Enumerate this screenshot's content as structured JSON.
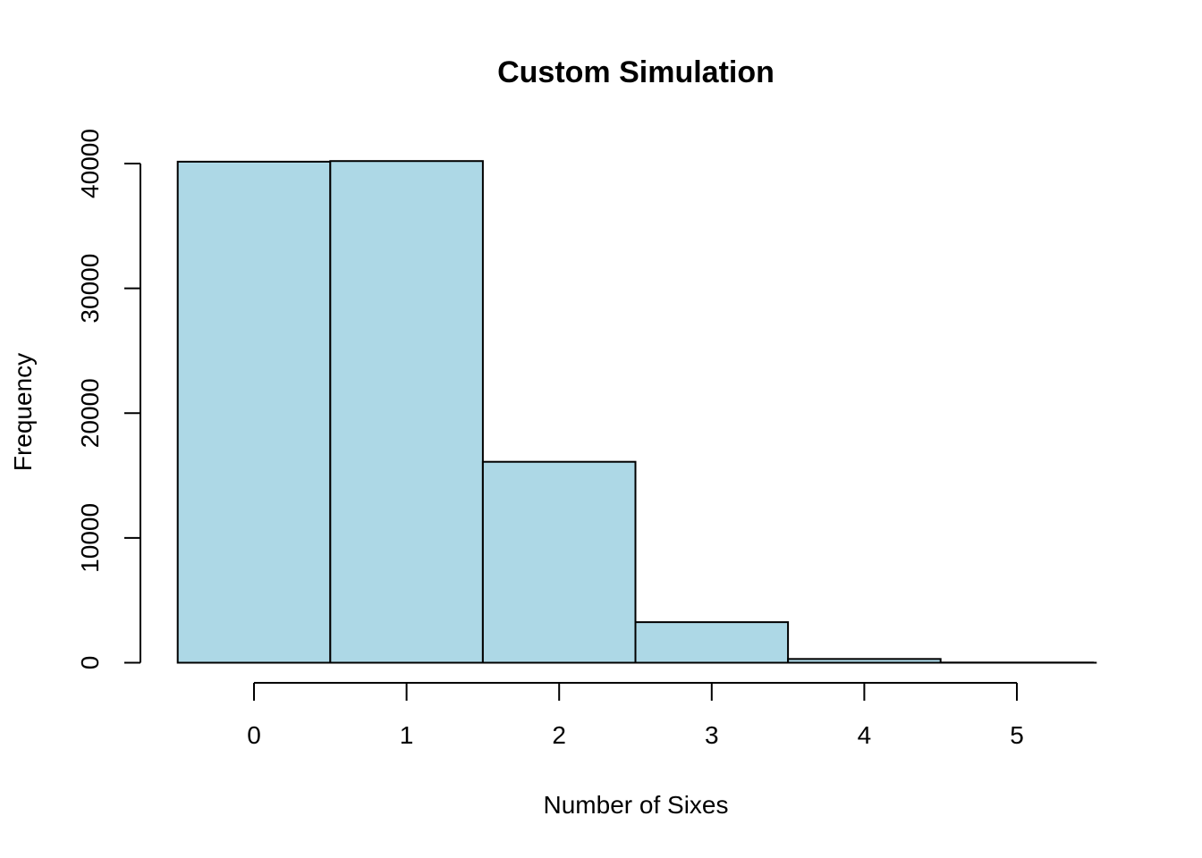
{
  "chart_data": {
    "type": "bar",
    "title": "Custom Simulation",
    "xlabel": "Number of Sixes",
    "ylabel": "Frequency",
    "categories": [
      "0",
      "1",
      "2",
      "3",
      "4",
      "5"
    ],
    "values": [
      40150,
      40200,
      16100,
      3250,
      300,
      15
    ],
    "xticks": [
      "0",
      "1",
      "2",
      "3",
      "4",
      "5"
    ],
    "yticks": [
      "0",
      "10000",
      "20000",
      "30000",
      "40000"
    ],
    "xlim": [
      -0.5,
      5.5
    ],
    "ylim": [
      0,
      40000
    ],
    "bar_color": "#add8e6",
    "grid": false,
    "legend": "none"
  }
}
